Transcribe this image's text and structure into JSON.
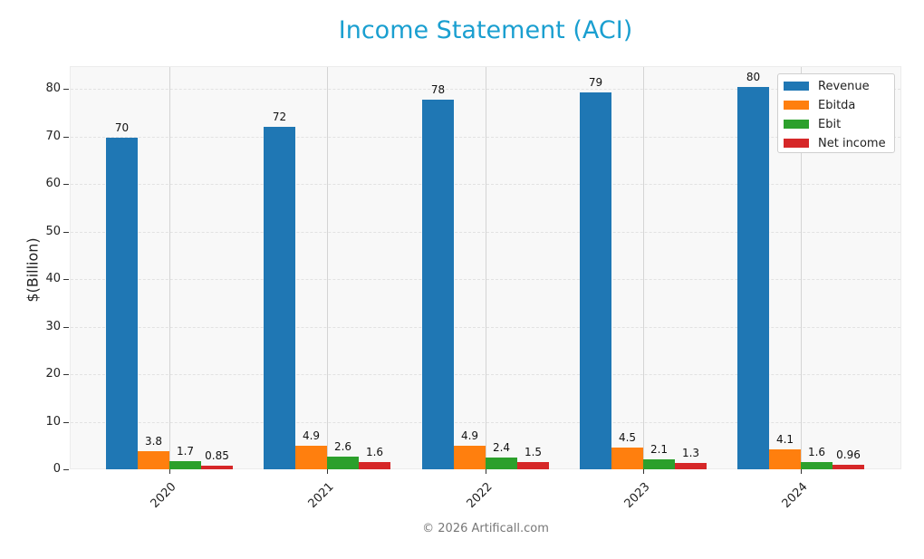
{
  "title": "Income Statement (ACI)",
  "footer": "© 2026 Artificall.com",
  "colors": {
    "title": "#1a9fd0",
    "Revenue": "#1f77b4",
    "Ebitda": "#ff7f0e",
    "Ebit": "#2ca02c",
    "Net income": "#d62728"
  },
  "chart_data": {
    "type": "bar",
    "title": "Income Statement (ACI)",
    "xlabel": "",
    "ylabel": "$(Billion)",
    "ylim": [
      0,
      85
    ],
    "yticks": [
      0,
      10,
      20,
      30,
      40,
      50,
      60,
      70,
      80
    ],
    "categories": [
      "2020",
      "2021",
      "2022",
      "2023",
      "2024"
    ],
    "series": [
      {
        "name": "Revenue",
        "values": [
          70,
          72,
          78,
          79,
          80
        ],
        "labels": [
          "70",
          "72",
          "78",
          "79",
          "80"
        ],
        "plot_values": [
          69.8,
          72.0,
          77.7,
          79.2,
          80.4
        ]
      },
      {
        "name": "Ebitda",
        "values": [
          3.8,
          4.9,
          4.9,
          4.5,
          4.1
        ],
        "labels": [
          "3.8",
          "4.9",
          "4.9",
          "4.5",
          "4.1"
        ],
        "plot_values": [
          3.8,
          4.9,
          4.9,
          4.5,
          4.1
        ]
      },
      {
        "name": "Ebit",
        "values": [
          1.7,
          2.6,
          2.4,
          2.1,
          1.6
        ],
        "labels": [
          "1.7",
          "2.6",
          "2.4",
          "2.1",
          "1.6"
        ],
        "plot_values": [
          1.7,
          2.6,
          2.4,
          2.1,
          1.6
        ]
      },
      {
        "name": "Net income",
        "values": [
          0.85,
          1.6,
          1.5,
          1.3,
          0.96
        ],
        "labels": [
          "0.85",
          "1.6",
          "1.5",
          "1.3",
          "0.96"
        ],
        "plot_values": [
          0.85,
          1.6,
          1.5,
          1.3,
          0.96
        ]
      }
    ],
    "legend": {
      "position": "upper right",
      "entries": [
        "Revenue",
        "Ebitda",
        "Ebit",
        "Net income"
      ]
    },
    "grid": true,
    "xtick_rotation": 45
  }
}
